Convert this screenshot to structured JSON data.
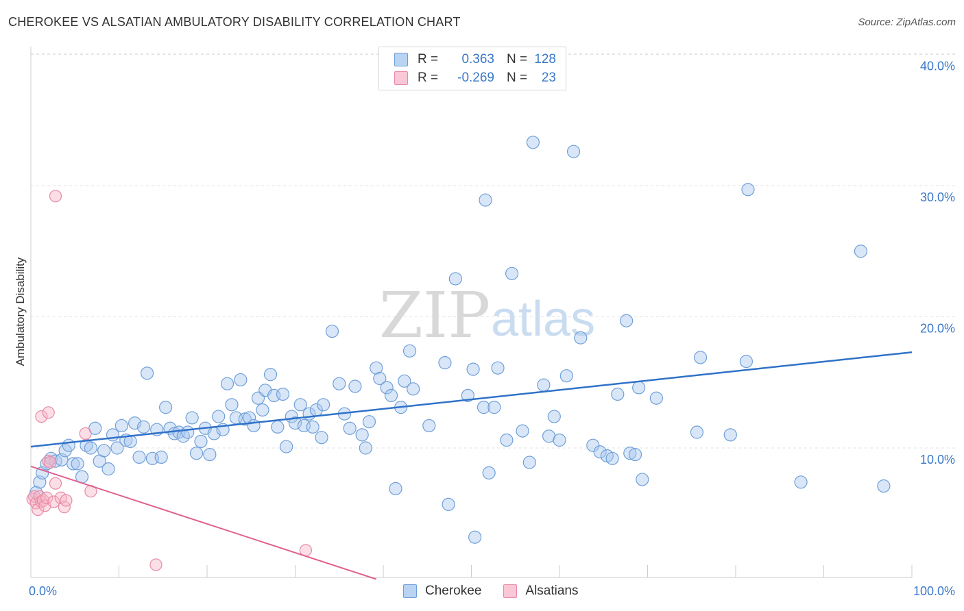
{
  "title": "CHEROKEE VS ALSATIAN AMBULATORY DISABILITY CORRELATION CHART",
  "source": "Source: ZipAtlas.com",
  "watermark": {
    "zip": "ZIP",
    "atlas": "atlas"
  },
  "legend": {
    "rows": [
      {
        "r_label": "R =",
        "r_value": "0.363",
        "n_label": "N =",
        "n_value": "128"
      },
      {
        "r_label": "R =",
        "r_value": "-0.269",
        "n_label": "N =",
        "n_value": "23"
      }
    ]
  },
  "colors": {
    "cherokee_fill": "#a9c8ef",
    "cherokee_stroke": "#6f9fd8",
    "cherokee_line": "#2f72c8",
    "alsatians_fill": "#f6b5c8",
    "alsatians_stroke": "#e88aa7",
    "alsatians_line": "#e0608e",
    "grid": "#e3e3e3",
    "axis_text": "#3a78c8"
  },
  "chart_data": {
    "type": "scatter",
    "title": "CHEROKEE VS ALSATIAN AMBULATORY DISABILITY CORRELATION CHART",
    "xlabel": "",
    "ylabel": "Ambulatory Disability",
    "xlim": [
      0,
      100
    ],
    "ylim": [
      0,
      42
    ],
    "x_tick_labels": [
      "0.0%",
      "100.0%"
    ],
    "y_ticks": [
      10,
      20,
      30,
      40
    ],
    "y_tick_labels": [
      "10.0%",
      "20.0%",
      "30.0%",
      "40.0%"
    ],
    "grid": "horizontal dashed",
    "legend_position": "top-center",
    "series": [
      {
        "name": "Cherokee",
        "R": 0.363,
        "N": 128,
        "trend": {
          "x": [
            0,
            100
          ],
          "y": [
            10.1,
            17.3
          ]
        },
        "points": [
          [
            0.6,
            6.6
          ],
          [
            1.0,
            7.4
          ],
          [
            1.3,
            8.1
          ],
          [
            1.8,
            8.8
          ],
          [
            2.3,
            9.2
          ],
          [
            2.8,
            9.0
          ],
          [
            3.5,
            9.1
          ],
          [
            3.9,
            9.8
          ],
          [
            4.3,
            10.2
          ],
          [
            4.8,
            8.8
          ],
          [
            5.3,
            8.8
          ],
          [
            5.8,
            7.8
          ],
          [
            6.3,
            10.2
          ],
          [
            6.8,
            10.0
          ],
          [
            7.3,
            11.5
          ],
          [
            7.8,
            9.0
          ],
          [
            8.3,
            9.8
          ],
          [
            8.8,
            8.4
          ],
          [
            9.3,
            11.0
          ],
          [
            9.8,
            10.0
          ],
          [
            10.3,
            11.7
          ],
          [
            10.8,
            10.6
          ],
          [
            11.3,
            10.5
          ],
          [
            11.8,
            11.9
          ],
          [
            12.3,
            9.3
          ],
          [
            12.8,
            11.6
          ],
          [
            13.2,
            15.7
          ],
          [
            13.8,
            9.2
          ],
          [
            14.3,
            11.4
          ],
          [
            14.8,
            9.3
          ],
          [
            15.3,
            13.1
          ],
          [
            15.8,
            11.5
          ],
          [
            16.3,
            11.1
          ],
          [
            16.8,
            11.2
          ],
          [
            17.3,
            10.9
          ],
          [
            17.8,
            11.2
          ],
          [
            18.3,
            12.3
          ],
          [
            18.8,
            9.6
          ],
          [
            19.3,
            10.5
          ],
          [
            19.8,
            11.5
          ],
          [
            20.3,
            9.5
          ],
          [
            20.8,
            11.1
          ],
          [
            21.3,
            12.4
          ],
          [
            21.8,
            11.4
          ],
          [
            22.3,
            14.9
          ],
          [
            22.8,
            13.3
          ],
          [
            23.3,
            12.3
          ],
          [
            23.8,
            15.2
          ],
          [
            24.3,
            12.2
          ],
          [
            24.8,
            12.3
          ],
          [
            25.3,
            11.7
          ],
          [
            25.8,
            13.8
          ],
          [
            26.3,
            12.9
          ],
          [
            26.6,
            14.4
          ],
          [
            27.2,
            15.6
          ],
          [
            27.6,
            14.0
          ],
          [
            28.0,
            11.6
          ],
          [
            28.6,
            14.1
          ],
          [
            29.0,
            10.1
          ],
          [
            29.6,
            12.4
          ],
          [
            30.0,
            11.9
          ],
          [
            30.6,
            13.3
          ],
          [
            31.0,
            11.7
          ],
          [
            31.6,
            12.6
          ],
          [
            32.0,
            11.6
          ],
          [
            32.4,
            12.9
          ],
          [
            33.0,
            10.8
          ],
          [
            33.2,
            13.3
          ],
          [
            34.2,
            18.9
          ],
          [
            35.0,
            14.9
          ],
          [
            35.6,
            12.6
          ],
          [
            36.2,
            11.5
          ],
          [
            36.8,
            14.7
          ],
          [
            37.6,
            11.0
          ],
          [
            38.0,
            10.0
          ],
          [
            38.4,
            12.0
          ],
          [
            39.2,
            16.1
          ],
          [
            39.6,
            15.3
          ],
          [
            40.4,
            14.6
          ],
          [
            40.9,
            14.0
          ],
          [
            41.4,
            6.9
          ],
          [
            42.0,
            13.1
          ],
          [
            42.4,
            15.1
          ],
          [
            43.0,
            17.4
          ],
          [
            43.4,
            14.5
          ],
          [
            45.2,
            11.7
          ],
          [
            47.0,
            16.5
          ],
          [
            47.4,
            5.7
          ],
          [
            48.2,
            22.9
          ],
          [
            49.6,
            14.0
          ],
          [
            50.4,
            3.2
          ],
          [
            50.2,
            16.0
          ],
          [
            51.4,
            13.1
          ],
          [
            51.6,
            28.9
          ],
          [
            52.0,
            8.1
          ],
          [
            52.6,
            13.1
          ],
          [
            53.0,
            16.1
          ],
          [
            54.0,
            10.6
          ],
          [
            54.6,
            23.3
          ],
          [
            55.8,
            11.3
          ],
          [
            56.6,
            8.9
          ],
          [
            57.0,
            33.3
          ],
          [
            58.2,
            14.8
          ],
          [
            58.8,
            10.9
          ],
          [
            59.4,
            12.4
          ],
          [
            60.0,
            10.6
          ],
          [
            60.8,
            15.5
          ],
          [
            61.6,
            32.6
          ],
          [
            62.4,
            18.4
          ],
          [
            63.8,
            10.2
          ],
          [
            64.6,
            9.7
          ],
          [
            65.4,
            9.4
          ],
          [
            66.0,
            9.2
          ],
          [
            66.6,
            14.1
          ],
          [
            67.6,
            19.7
          ],
          [
            68.0,
            9.6
          ],
          [
            68.6,
            9.5
          ],
          [
            69.0,
            14.6
          ],
          [
            69.4,
            7.6
          ],
          [
            71.0,
            13.8
          ],
          [
            75.6,
            11.2
          ],
          [
            76.0,
            16.9
          ],
          [
            79.4,
            11.0
          ],
          [
            81.2,
            16.6
          ],
          [
            81.4,
            29.7
          ],
          [
            87.4,
            7.4
          ],
          [
            94.2,
            25.0
          ],
          [
            96.8,
            7.1
          ]
        ]
      },
      {
        "name": "Alsatians",
        "R": -0.269,
        "N": 23,
        "trend": {
          "x": [
            0,
            39.2
          ],
          "y": [
            8.6,
            0
          ]
        },
        "points": [
          [
            0.2,
            6.1
          ],
          [
            0.4,
            6.3
          ],
          [
            0.6,
            5.8
          ],
          [
            0.8,
            5.3
          ],
          [
            1.0,
            6.3
          ],
          [
            1.2,
            5.9
          ],
          [
            1.4,
            6.0
          ],
          [
            1.6,
            5.6
          ],
          [
            1.8,
            6.2
          ],
          [
            2.0,
            9.0
          ],
          [
            2.2,
            8.9
          ],
          [
            2.6,
            5.9
          ],
          [
            2.8,
            7.3
          ],
          [
            3.4,
            6.2
          ],
          [
            3.8,
            5.5
          ],
          [
            4.0,
            6.0
          ],
          [
            1.2,
            12.4
          ],
          [
            2.0,
            12.7
          ],
          [
            2.8,
            29.2
          ],
          [
            6.2,
            11.1
          ],
          [
            6.8,
            6.7
          ],
          [
            14.2,
            1.1
          ],
          [
            31.2,
            2.2
          ]
        ]
      }
    ]
  },
  "bottom_legend": {
    "items": [
      "Cherokee",
      "Alsatians"
    ]
  }
}
